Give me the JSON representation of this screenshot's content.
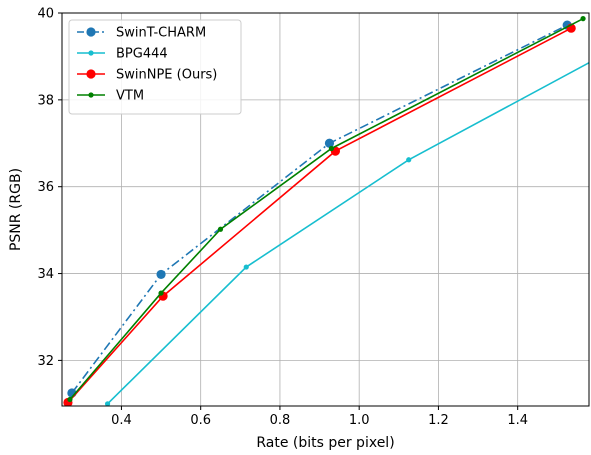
{
  "chart_data": {
    "type": "line",
    "title": "",
    "xlabel": "Rate (bits per pixel)",
    "ylabel": "PSNR (RGB)",
    "xlim": [
      0.25,
      1.58
    ],
    "ylim": [
      30.95,
      40.0
    ],
    "x_ticks": [
      "0.4",
      "0.6",
      "0.8",
      "1.0",
      "1.2",
      "1.4"
    ],
    "x_tick_values": [
      0.4,
      0.6,
      0.8,
      1.0,
      1.2,
      1.4
    ],
    "y_ticks": [
      "32",
      "34",
      "36",
      "38",
      "40"
    ],
    "y_tick_values": [
      32,
      34,
      36,
      38,
      40
    ],
    "grid": true,
    "legend_position": "top-left",
    "series": [
      {
        "name": "SwinT-CHARM",
        "color": "#1f77b4",
        "style": "dashdot",
        "marker": "large-circle",
        "points": [
          [
            0.275,
            31.25
          ],
          [
            0.5,
            33.98
          ],
          [
            0.925,
            37.0
          ],
          [
            1.525,
            39.72
          ]
        ]
      },
      {
        "name": "BPG444",
        "color": "#17becf",
        "style": "solid",
        "marker": "small-circle",
        "points": [
          [
            0.365,
            31.0
          ],
          [
            0.715,
            34.15
          ],
          [
            1.125,
            36.62
          ],
          [
            1.62,
            39.05
          ]
        ]
      },
      {
        "name": "SwinNPE (Ours)",
        "color": "#ff0000",
        "style": "solid",
        "marker": "large-circle",
        "points": [
          [
            0.265,
            31.03
          ],
          [
            0.505,
            33.48
          ],
          [
            0.94,
            36.82
          ],
          [
            1.535,
            39.65
          ]
        ]
      },
      {
        "name": "VTM",
        "color": "#008000",
        "style": "solid",
        "marker": "small-circle",
        "points": [
          [
            0.27,
            31.1
          ],
          [
            0.5,
            33.55
          ],
          [
            0.65,
            35.02
          ],
          [
            0.93,
            36.88
          ],
          [
            1.565,
            39.87
          ]
        ]
      }
    ]
  }
}
